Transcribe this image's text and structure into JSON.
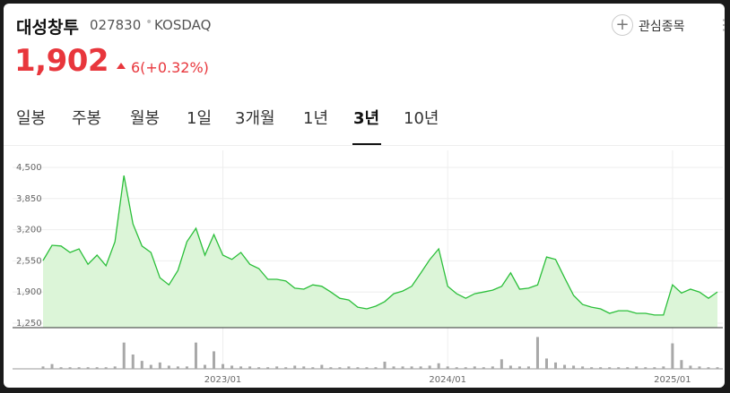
{
  "header": {
    "name": "대성창투",
    "code": "027830",
    "market": "KOSDAQ",
    "favorite": "관심종목",
    "price": "1,902",
    "change": "6(+0.32%)"
  },
  "tabs": [
    "일봉",
    "주봉",
    "월봉",
    "1일",
    "3개월",
    "1년",
    "3년",
    "10년"
  ],
  "selected_tab": 6,
  "chart_data": {
    "type": "area",
    "color": "#2bbf3a",
    "fill": "#dcf5d8",
    "grid": true,
    "categories": [
      null,
      null,
      null,
      null,
      null,
      null,
      null,
      null,
      null,
      null,
      null,
      null,
      null,
      null,
      null,
      null,
      null,
      null,
      null,
      null,
      "2023/01",
      null,
      null,
      null,
      null,
      null,
      null,
      null,
      null,
      null,
      null,
      null,
      null,
      null,
      null,
      null,
      null,
      null,
      null,
      null,
      null,
      null,
      null,
      null,
      null,
      "2024/01",
      null,
      null,
      null,
      null,
      null,
      null,
      null,
      null,
      null,
      null,
      null,
      null,
      null,
      null,
      null,
      null,
      null,
      null,
      null,
      null,
      null,
      null,
      null,
      null,
      "2025/01",
      null,
      null,
      null,
      null,
      null
    ],
    "values": [
      2558,
      2875,
      2860,
      2725,
      2800,
      2480,
      2670,
      2450,
      2950,
      4330,
      3320,
      2860,
      2725,
      2200,
      2050,
      2350,
      2950,
      3230,
      2670,
      3100,
      2670,
      2580,
      2725,
      2480,
      2390,
      2165,
      2165,
      2130,
      1980,
      1960,
      2050,
      2020,
      1900,
      1770,
      1735,
      1585,
      1550,
      1605,
      1700,
      1865,
      1920,
      2020,
      2295,
      2575,
      2800,
      2020,
      1865,
      1770,
      1865,
      1900,
      1940,
      2020,
      2300,
      1960,
      1980,
      2050,
      2630,
      2580,
      2200,
      1830,
      1640,
      1585,
      1550,
      1455,
      1510,
      1510,
      1455,
      1455,
      1420,
      1420,
      2050,
      1880,
      1960,
      1900,
      1770,
      1902
    ],
    "volume": [
      3,
      6,
      2,
      2,
      2,
      2,
      2,
      2,
      3,
      33,
      18,
      10,
      5,
      8,
      4,
      3,
      3,
      33,
      5,
      22,
      6,
      4,
      3,
      3,
      2,
      2,
      3,
      2,
      4,
      3,
      2,
      5,
      2,
      2,
      3,
      2,
      2,
      2,
      9,
      3,
      3,
      3,
      3,
      4,
      7,
      3,
      2,
      2,
      3,
      2,
      3,
      12,
      4,
      3,
      3,
      40,
      13,
      8,
      5,
      4,
      3,
      2,
      2,
      2,
      2,
      2,
      3,
      2,
      2,
      3,
      32,
      11,
      4,
      3,
      2,
      2
    ],
    "vlim": [
      0,
      45
    ],
    "ylim": [
      1157,
      4668
    ],
    "yticks": [
      {
        "value": 4500,
        "label": "4,500"
      },
      {
        "value": 3850,
        "label": "3,850"
      },
      {
        "value": 3200,
        "label": "3,200"
      },
      {
        "value": 2550,
        "label": "2,550"
      },
      {
        "value": 1900,
        "label": "1,900"
      },
      {
        "value": 1250,
        "label": "1,250"
      }
    ]
  }
}
